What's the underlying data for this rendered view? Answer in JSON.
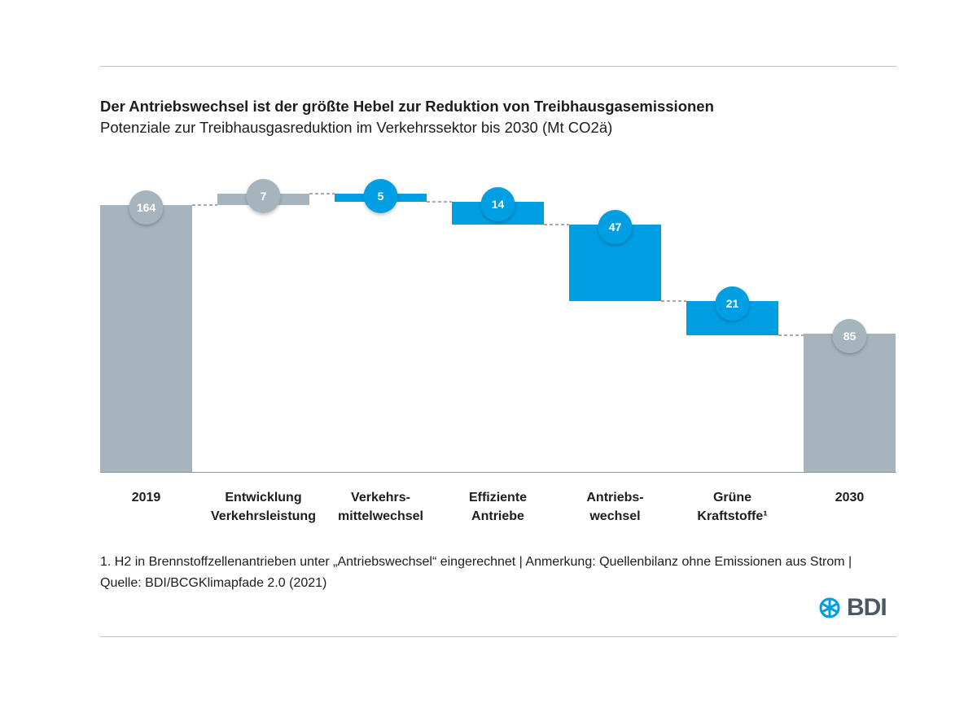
{
  "chart_data": {
    "type": "waterfall",
    "title": "Der Antriebswechsel ist der größte Hebel zur Reduktion von Treibhausgasemissionen",
    "subtitle": "Potenziale zur Treibhausgasreduktion im Verkehrssektor bis 2030 (Mt CO2ä)",
    "categories": [
      [
        "2019"
      ],
      [
        "Entwicklung",
        "Verkehrsleistung"
      ],
      [
        "Verkehrs-",
        "mittelwechsel"
      ],
      [
        "Effiziente",
        "Antriebe"
      ],
      [
        "Antriebs-",
        "wechsel"
      ],
      [
        "Grüne",
        "Kraftstoffe¹"
      ],
      [
        "2030"
      ]
    ],
    "values": [
      164,
      7,
      -5,
      -14,
      -47,
      -21,
      85
    ],
    "labels": [
      "164",
      "7",
      "5",
      "14",
      "47",
      "21",
      "85"
    ],
    "kinds": [
      "total",
      "increase",
      "decrease",
      "decrease",
      "decrease",
      "decrease",
      "total"
    ],
    "colors": {
      "total": "#a6b5bd",
      "increase": "#a6b5bd",
      "decrease": "#009fe3"
    }
  },
  "footnote": "1. H2 in Brennstoffzellenantrieben unter „Antriebswechsel“ eingerechnet | Anmerkung: Quellenbilanz ohne Emissionen aus Strom | Quelle: BDI/BCGKlimapfade 2.0 (2021)",
  "logo": "BDI"
}
